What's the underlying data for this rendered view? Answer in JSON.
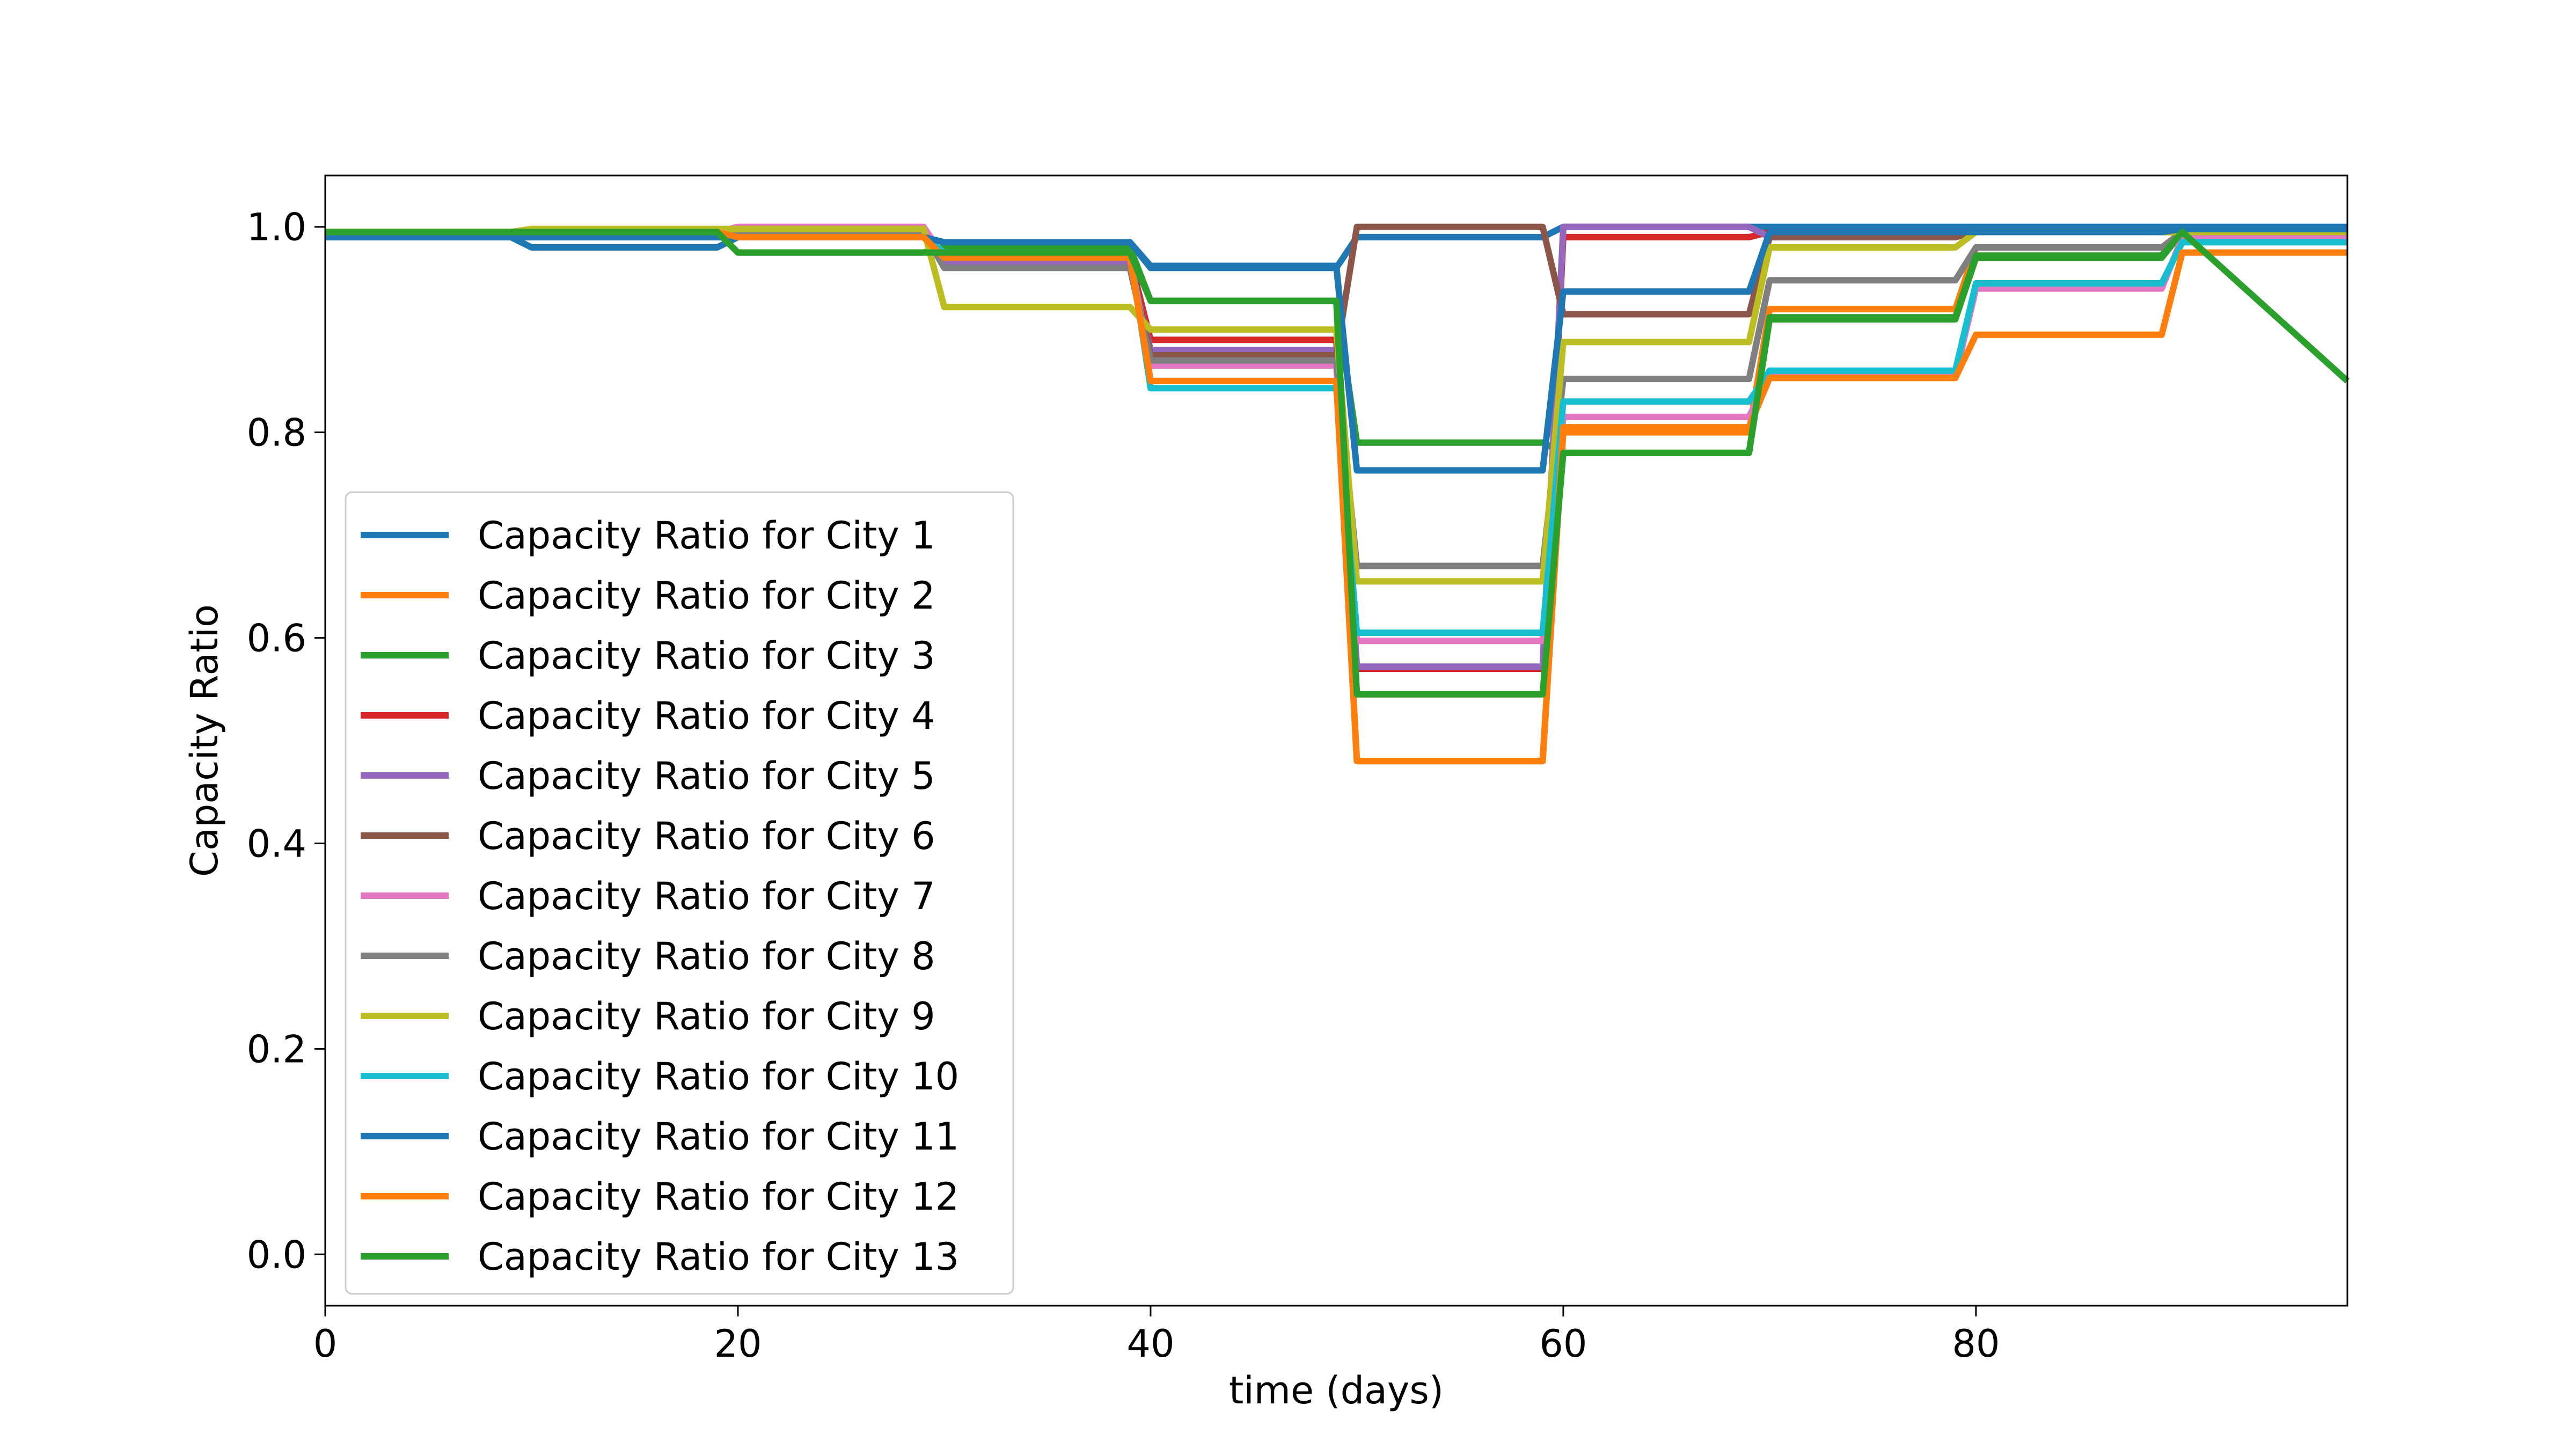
{
  "chart_data": {
    "type": "line",
    "title": "",
    "xlabel": "time (days)",
    "ylabel": "Capacity Ratio",
    "xlim": [
      0,
      98
    ],
    "ylim": [
      -0.05,
      1.05
    ],
    "xticks": [
      0,
      20,
      40,
      60,
      80
    ],
    "xtick_labels": [
      "0",
      "20",
      "40",
      "60",
      "80"
    ],
    "yticks": [
      0.0,
      0.2,
      0.4,
      0.6,
      0.8,
      1.0
    ],
    "ytick_labels": [
      "0.0",
      "0.2",
      "0.4",
      "0.6",
      "0.8",
      "1.0"
    ],
    "grid": false,
    "legend_position": "lower-left",
    "x": [
      0,
      9,
      10,
      19,
      20,
      29,
      30,
      39,
      40,
      49,
      50,
      59,
      60,
      69,
      70,
      79,
      80,
      89,
      90,
      98
    ],
    "series": [
      {
        "name": "Capacity Ratio for City 1",
        "color": "#1f77b4",
        "values": [
          0.99,
          0.99,
          0.98,
          0.98,
          0.99,
          0.99,
          0.985,
          0.985,
          0.96,
          0.96,
          0.99,
          0.99,
          1.0,
          1.0,
          1.0,
          1.0,
          1.0,
          1.0,
          1.0,
          1.0
        ]
      },
      {
        "name": "Capacity Ratio for City 2",
        "color": "#ff7f0e",
        "values": [
          0.995,
          0.995,
          0.995,
          0.995,
          0.99,
          0.99,
          0.97,
          0.97,
          0.85,
          0.85,
          0.48,
          0.48,
          0.8,
          0.8,
          0.92,
          0.92,
          0.98,
          0.98,
          0.99,
          0.99
        ]
      },
      {
        "name": "Capacity Ratio for City 3",
        "color": "#2ca02c",
        "values": [
          0.995,
          0.995,
          0.995,
          0.995,
          0.975,
          0.975,
          0.98,
          0.98,
          0.928,
          0.928,
          0.79,
          0.79,
          0.78,
          0.78,
          0.91,
          0.91,
          0.97,
          0.97,
          0.995,
          0.995
        ]
      },
      {
        "name": "Capacity Ratio for City 4",
        "color": "#d62728",
        "values": [
          0.995,
          0.995,
          0.995,
          0.995,
          0.995,
          0.995,
          0.97,
          0.97,
          0.89,
          0.89,
          0.57,
          0.57,
          0.99,
          0.99,
          0.995,
          0.995,
          0.995,
          0.995,
          0.995,
          0.995
        ]
      },
      {
        "name": "Capacity Ratio for City 5",
        "color": "#9467bd",
        "values": [
          0.995,
          0.995,
          0.995,
          0.995,
          0.995,
          0.995,
          0.965,
          0.965,
          0.88,
          0.88,
          0.572,
          0.572,
          1.0,
          1.0,
          0.99,
          0.99,
          0.995,
          0.995,
          0.995,
          0.995
        ]
      },
      {
        "name": "Capacity Ratio for City 6",
        "color": "#8c564b",
        "values": [
          0.99,
          0.99,
          0.99,
          0.99,
          0.99,
          0.99,
          0.97,
          0.97,
          0.875,
          0.875,
          1.0,
          1.0,
          0.915,
          0.915,
          0.99,
          0.99,
          0.995,
          0.995,
          0.995,
          0.995
        ]
      },
      {
        "name": "Capacity Ratio for City 7",
        "color": "#e377c2",
        "values": [
          0.995,
          0.995,
          0.995,
          0.995,
          1.0,
          1.0,
          0.97,
          0.97,
          0.865,
          0.865,
          0.597,
          0.597,
          0.815,
          0.815,
          0.855,
          0.855,
          0.94,
          0.94,
          0.99,
          0.99
        ]
      },
      {
        "name": "Capacity Ratio for City 8",
        "color": "#7f7f7f",
        "values": [
          0.99,
          0.99,
          0.99,
          0.99,
          0.995,
          0.995,
          0.96,
          0.96,
          0.87,
          0.87,
          0.67,
          0.67,
          0.852,
          0.852,
          0.948,
          0.948,
          0.98,
          0.98,
          0.995,
          0.995
        ]
      },
      {
        "name": "Capacity Ratio for City 9",
        "color": "#bcbd22",
        "values": [
          0.995,
          0.995,
          0.998,
          0.998,
          0.998,
          0.998,
          0.922,
          0.922,
          0.9,
          0.9,
          0.655,
          0.655,
          0.888,
          0.888,
          0.98,
          0.98,
          0.995,
          0.995,
          0.995,
          0.995
        ]
      },
      {
        "name": "Capacity Ratio for City 10",
        "color": "#17becf",
        "values": [
          0.99,
          0.99,
          0.99,
          0.99,
          0.99,
          0.99,
          0.975,
          0.975,
          0.843,
          0.843,
          0.605,
          0.605,
          0.83,
          0.83,
          0.86,
          0.86,
          0.945,
          0.945,
          0.985,
          0.985
        ]
      },
      {
        "name": "Capacity Ratio for City 11",
        "color": "#1f77b4",
        "values": [
          0.99,
          0.99,
          0.99,
          0.99,
          0.99,
          0.99,
          0.985,
          0.985,
          0.962,
          0.962,
          0.763,
          0.763,
          0.937,
          0.937,
          0.995,
          0.995,
          0.995,
          0.995,
          0.998,
          0.998
        ]
      },
      {
        "name": "Capacity Ratio for City 12",
        "color": "#ff7f0e",
        "values": [
          0.995,
          0.995,
          0.995,
          0.995,
          0.99,
          0.99,
          0.97,
          0.97,
          0.85,
          0.85,
          0.48,
          0.48,
          0.805,
          0.805,
          0.853,
          0.853,
          0.895,
          0.895,
          0.975,
          0.975
        ]
      },
      {
        "name": "Capacity Ratio for City 13",
        "color": "#2ca02c",
        "values": [
          0.995,
          0.995,
          0.995,
          0.995,
          0.975,
          0.975,
          0.975,
          0.975,
          0.928,
          0.928,
          0.545,
          0.545,
          0.78,
          0.78,
          0.912,
          0.912,
          0.972,
          0.972,
          0.995,
          0.85
        ]
      }
    ]
  }
}
